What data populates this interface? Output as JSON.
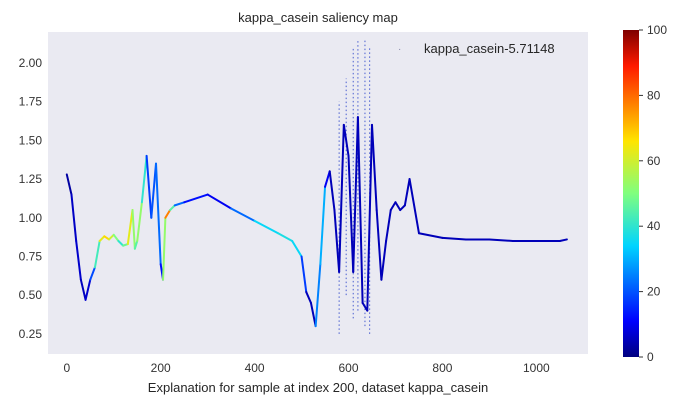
{
  "chart_data": {
    "type": "line",
    "title": "kappa_casein saliency map",
    "xlabel": "Explanation for sample at index 200, dataset kappa_casein",
    "ylabel": "",
    "xlim": [
      -40,
      1110
    ],
    "ylim": [
      0.12,
      2.2
    ],
    "xticks": [
      0,
      200,
      400,
      600,
      800,
      1000
    ],
    "yticks": [
      0.25,
      0.5,
      0.75,
      1.0,
      1.25,
      1.5,
      1.75,
      2.0
    ],
    "ytick_labels": [
      "0.25",
      "0.50",
      "0.75",
      "1.00",
      "1.25",
      "1.50",
      "1.75",
      "2.00"
    ],
    "grid": false,
    "background": "#eaeaf2",
    "legend": {
      "placement": "top-right",
      "entries": [
        "kappa_casein-5.71148"
      ]
    },
    "colorbar": {
      "cmap": "jet",
      "range": [
        0,
        100
      ],
      "ticks": [
        0,
        20,
        40,
        60,
        80,
        100
      ]
    },
    "series": [
      {
        "name": "kappa_casein-5.71148",
        "x": [
          0,
          10,
          20,
          30,
          40,
          50,
          60,
          70,
          80,
          90,
          100,
          110,
          120,
          130,
          140,
          145,
          150,
          160,
          170,
          180,
          190,
          200,
          205,
          210,
          220,
          230,
          250,
          300,
          350,
          400,
          450,
          480,
          500,
          510,
          520,
          530,
          540,
          550,
          560,
          570,
          580,
          590,
          600,
          610,
          620,
          630,
          640,
          650,
          660,
          670,
          680,
          690,
          700,
          710,
          720,
          730,
          750,
          800,
          850,
          900,
          950,
          1000,
          1050,
          1065
        ],
        "y": [
          1.28,
          1.15,
          0.85,
          0.6,
          0.47,
          0.6,
          0.68,
          0.85,
          0.88,
          0.86,
          0.89,
          0.85,
          0.82,
          0.83,
          1.05,
          0.8,
          0.85,
          1.1,
          1.4,
          1.0,
          1.35,
          0.7,
          0.6,
          1.0,
          1.05,
          1.08,
          1.1,
          1.15,
          1.06,
          0.98,
          0.9,
          0.85,
          0.75,
          0.52,
          0.45,
          0.3,
          0.7,
          1.2,
          1.3,
          1.05,
          0.65,
          1.6,
          1.4,
          0.65,
          1.65,
          0.45,
          0.4,
          1.6,
          1.05,
          0.6,
          0.85,
          1.05,
          1.1,
          1.05,
          1.08,
          1.25,
          0.9,
          0.87,
          0.86,
          0.86,
          0.85,
          0.85,
          0.85,
          0.86
        ],
        "saliency": [
          2,
          4,
          8,
          5,
          6,
          8,
          30,
          55,
          70,
          65,
          55,
          45,
          35,
          60,
          65,
          40,
          50,
          55,
          25,
          10,
          30,
          15,
          10,
          95,
          60,
          30,
          15,
          10,
          10,
          35,
          35,
          40,
          30,
          5,
          5,
          5,
          45,
          15,
          5,
          5,
          5,
          5,
          5,
          5,
          5,
          5,
          5,
          5,
          5,
          5,
          5,
          5,
          5,
          5,
          5,
          5,
          5,
          5,
          5,
          5,
          5,
          5,
          5,
          5
        ]
      }
    ],
    "spikes": [
      {
        "x": 580,
        "low": 0.25,
        "high": 1.75
      },
      {
        "x": 595,
        "low": 0.5,
        "high": 1.9
      },
      {
        "x": 610,
        "low": 0.35,
        "high": 2.1
      },
      {
        "x": 620,
        "low": 0.4,
        "high": 2.15
      },
      {
        "x": 635,
        "low": 0.3,
        "high": 2.15
      },
      {
        "x": 645,
        "low": 0.25,
        "high": 2.1
      }
    ]
  }
}
